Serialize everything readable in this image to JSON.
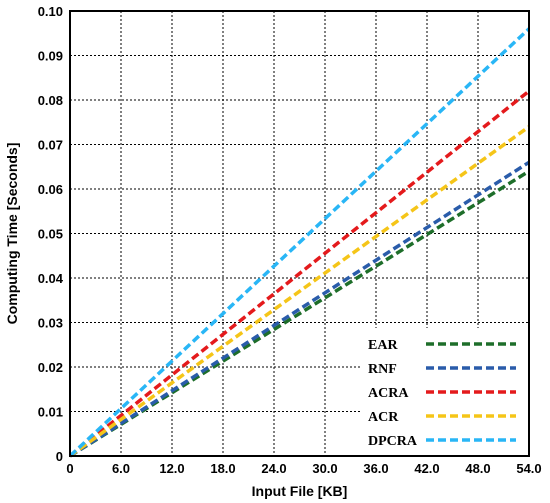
{
  "chart_data": {
    "type": "line",
    "xlabel": "Input File [KB]",
    "ylabel": "Computing Time [Seconds]",
    "xlim": [
      0,
      54
    ],
    "ylim": [
      0,
      0.1
    ],
    "x_ticks": [
      "0",
      "6.0",
      "12.0",
      "18.0",
      "24.0",
      "30.0",
      "36.0",
      "42.0",
      "48.0",
      "54.0"
    ],
    "y_ticks": [
      "0",
      "0.01",
      "0.02",
      "0.03",
      "0.04",
      "0.05",
      "0.06",
      "0.07",
      "0.08",
      "0.09",
      "0.10"
    ],
    "grid": true,
    "legend_position": "bottom-right",
    "series": [
      {
        "name": "EAR",
        "color": "#1e6e2a",
        "x": [
          0,
          54
        ],
        "y": [
          0,
          0.064
        ]
      },
      {
        "name": "RNF",
        "color": "#2a5caa",
        "x": [
          0,
          54
        ],
        "y": [
          0,
          0.066
        ]
      },
      {
        "name": "ACRA",
        "color": "#e41a1c",
        "x": [
          0,
          54
        ],
        "y": [
          0,
          0.082
        ]
      },
      {
        "name": "ACR",
        "color": "#f5c518",
        "x": [
          0,
          54
        ],
        "y": [
          0,
          0.074
        ]
      },
      {
        "name": "DPCRA",
        "color": "#29b6f6",
        "x": [
          0,
          54
        ],
        "y": [
          0,
          0.096
        ]
      }
    ]
  }
}
